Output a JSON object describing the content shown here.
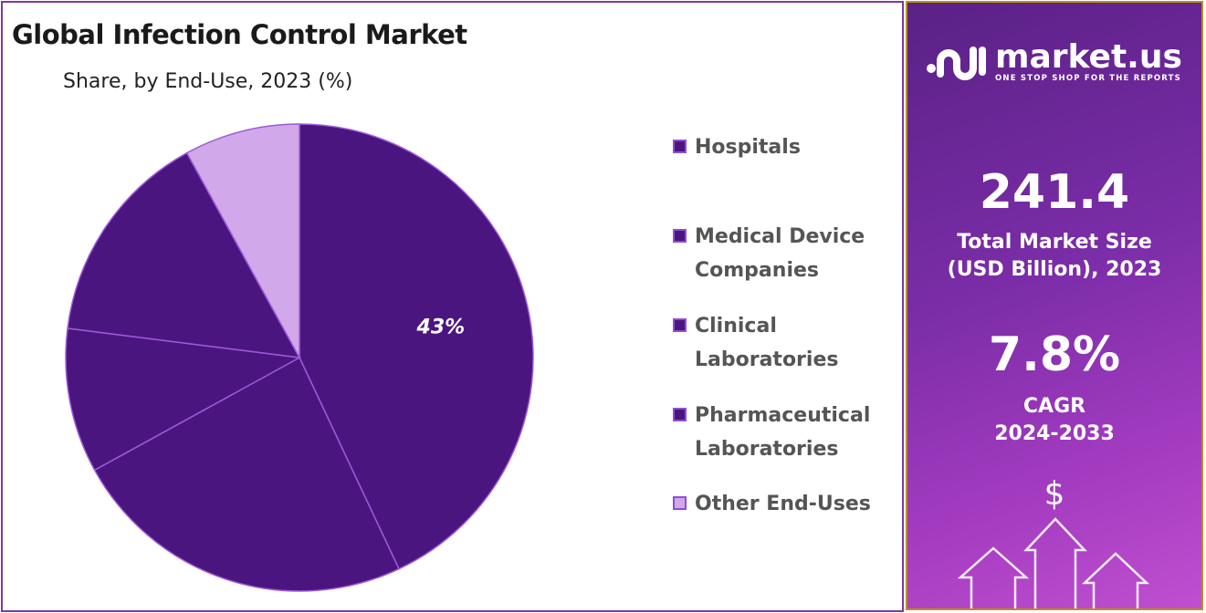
{
  "header": {
    "title": "Global Infection Control Market",
    "subtitle": "Share, by End-Use, 2023 (%)"
  },
  "chart_data": {
    "type": "pie",
    "title": "Global Infection Control Market",
    "subtitle": "Share, by End-Use, 2023 (%)",
    "categories": [
      "Hospitals",
      "Medical Device Companies",
      "Clinical Laboratories",
      "Pharmaceutical Laboratories",
      "Other End-Uses"
    ],
    "values": [
      43,
      24,
      10,
      15,
      8
    ],
    "data_labels": [
      "43%",
      "",
      "",
      "",
      ""
    ],
    "colors": [
      "#4b1580",
      "#4b1580",
      "#4b1580",
      "#4b1580",
      "#d1a8ea"
    ],
    "slice_stroke": "#9d5ad6",
    "start": "12 o'clock, clockwise",
    "legend_placement": "right"
  },
  "legend": {
    "items": [
      "Hospitals",
      "Medical Device Companies",
      "Clinical Laboratories",
      "Pharmaceutical Laboratories",
      "Other End-Uses"
    ]
  },
  "panel": {
    "brand": "market.us",
    "tagline": "ONE STOP SHOP FOR THE REPORTS",
    "market_size": "241.4",
    "market_size_label_1": "Total Market Size",
    "market_size_label_2": "(USD Billion), 2023",
    "cagr": "7.8%",
    "cagr_label_1": "CAGR",
    "cagr_label_2": "2024-2033",
    "currency_symbol": "$"
  }
}
